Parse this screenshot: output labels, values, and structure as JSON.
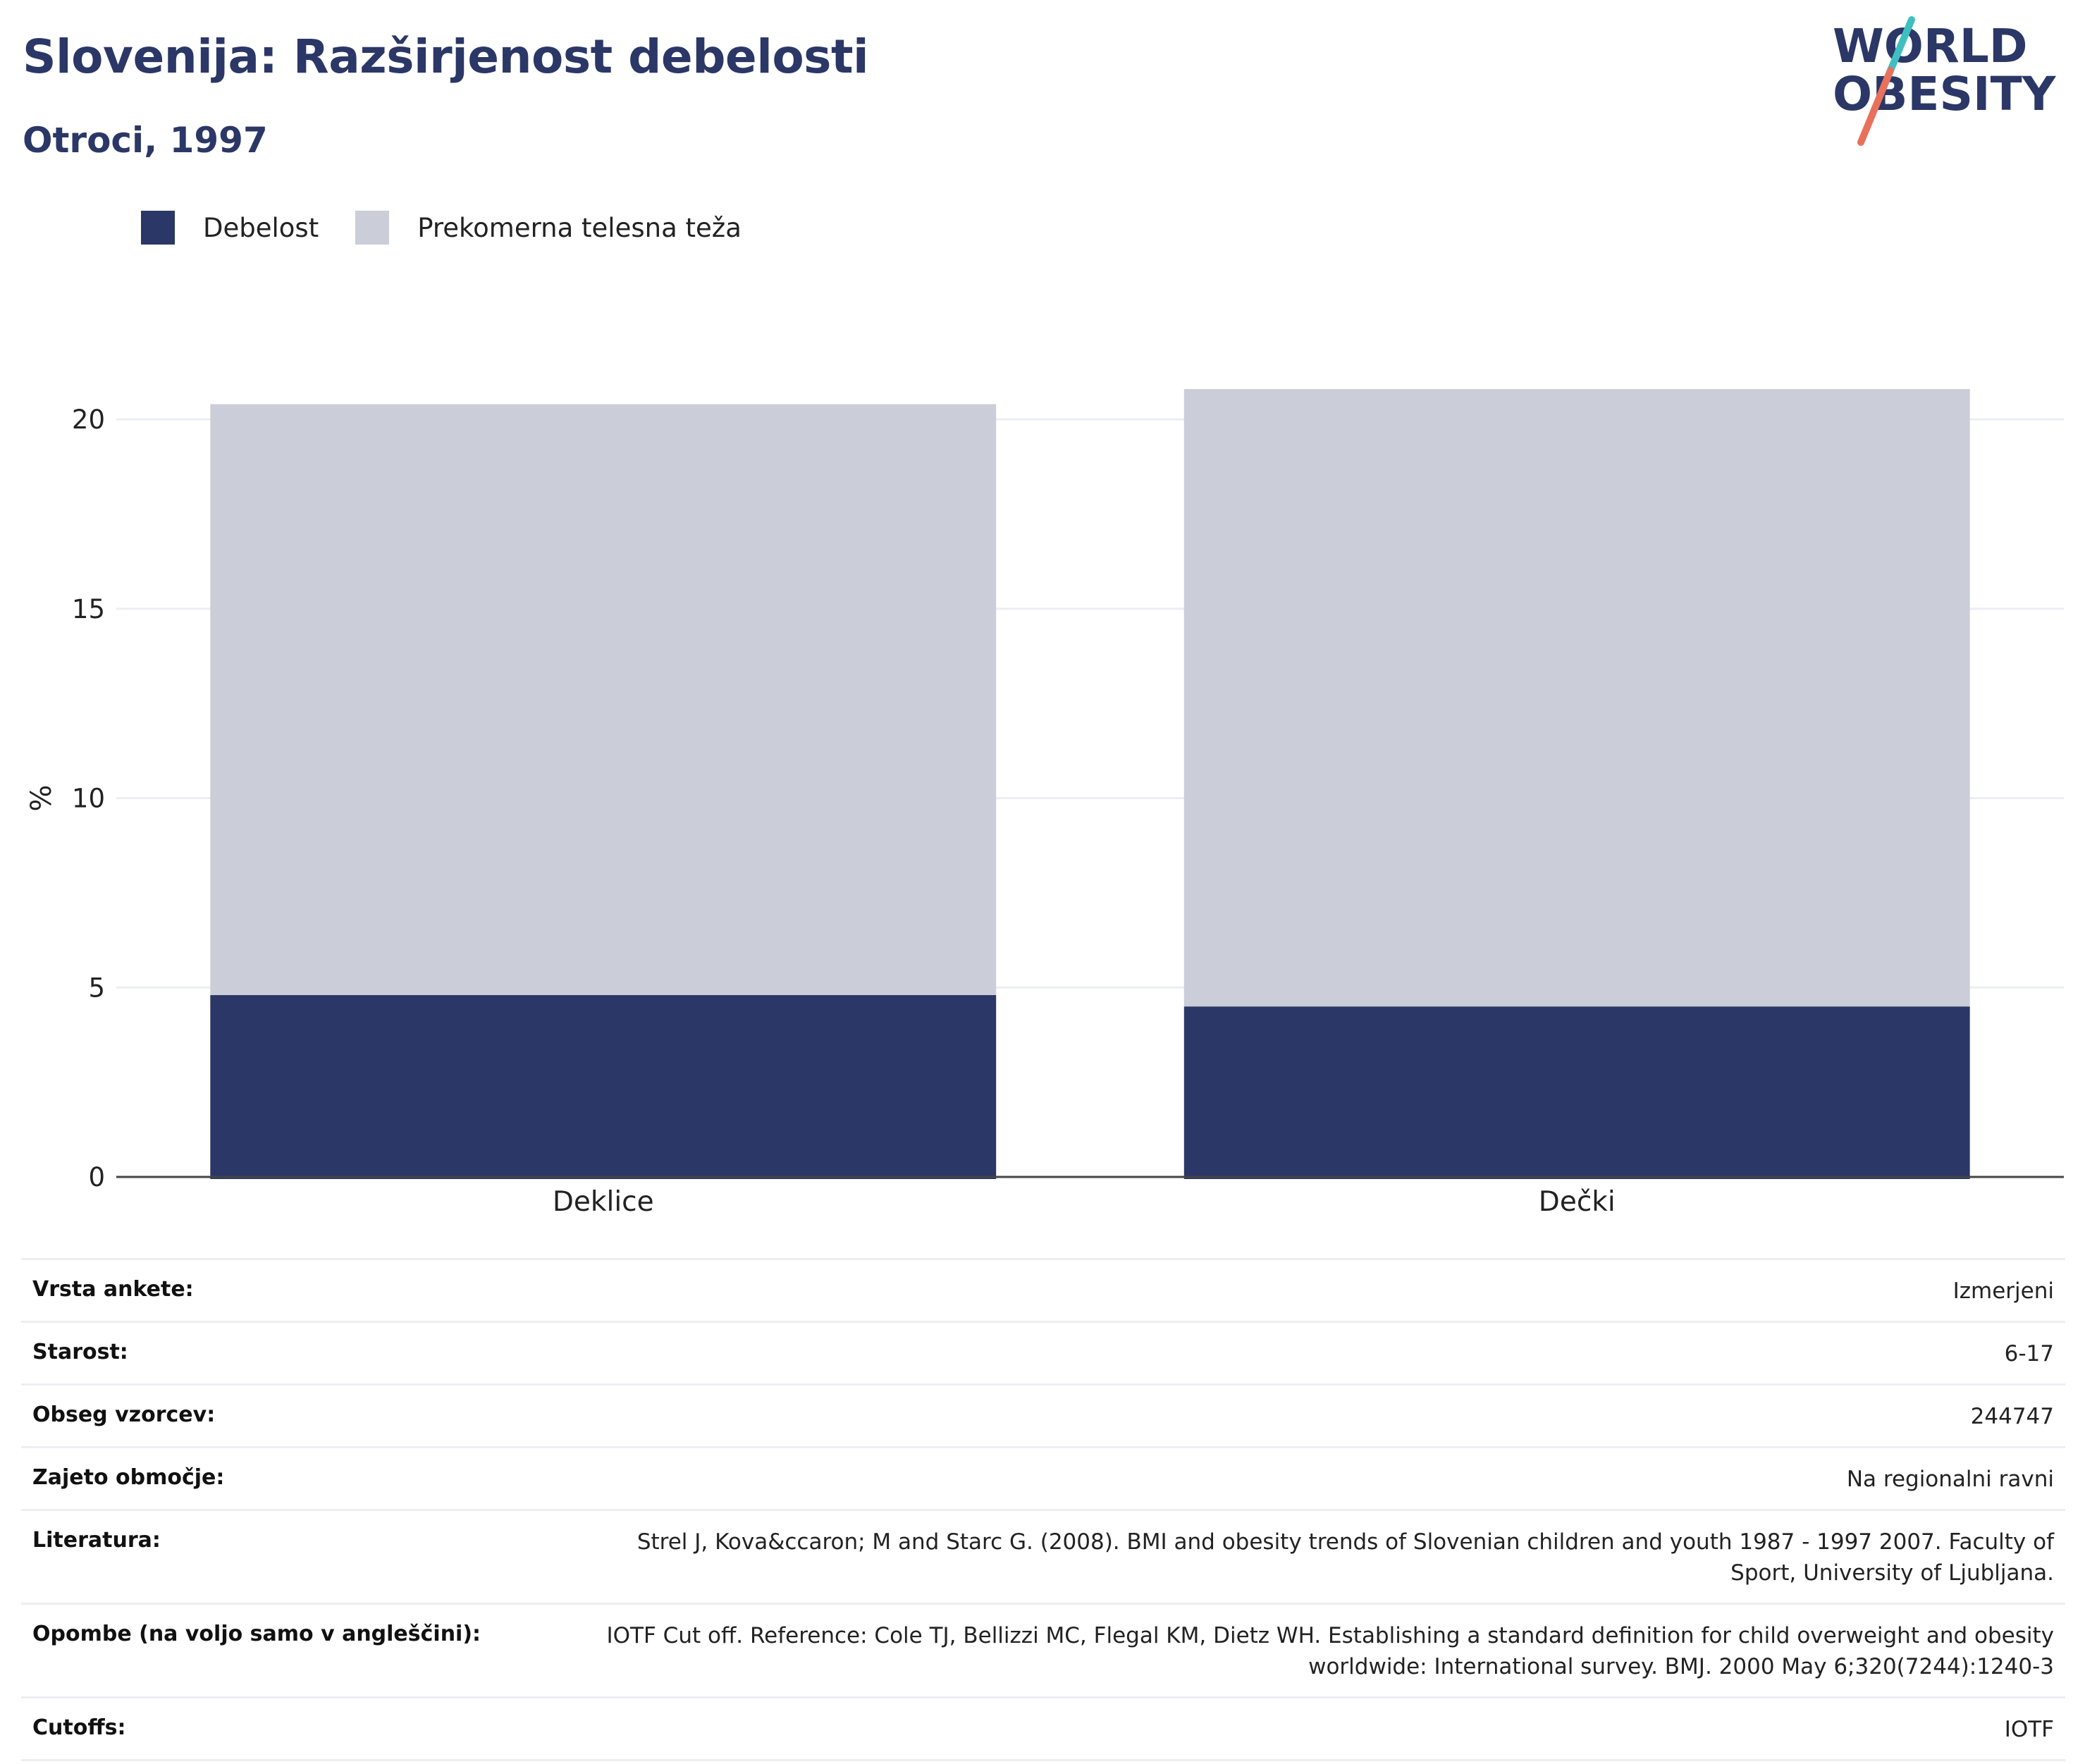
{
  "header": {
    "title": "Slovenija: Razširjenost debelosti",
    "subtitle": "Otroci, 1997"
  },
  "logo": {
    "line1": "WORLD",
    "line2": "OBESITY",
    "colors": {
      "text": "#2b3766",
      "slash_top": "#3fbfbf",
      "slash_bottom": "#e8715c"
    }
  },
  "legend": [
    {
      "label": "Debelost",
      "color": "#2b3766"
    },
    {
      "label": "Prekomerna telesna teža",
      "color": "#cbcdd8"
    }
  ],
  "chart_data": {
    "type": "bar",
    "stacked": true,
    "categories": [
      "Deklice",
      "Dečki"
    ],
    "series": [
      {
        "name": "Debelost",
        "color": "#2b3766",
        "values": [
          4.8,
          4.5
        ]
      },
      {
        "name": "Prekomerna telesna teža",
        "color": "#cbcdd8",
        "values": [
          15.6,
          16.3
        ]
      }
    ],
    "ylabel": "%",
    "ylim": [
      0,
      20.8
    ],
    "yticks": [
      0,
      5,
      10,
      15,
      20
    ],
    "grid": true,
    "legend_position": "top-left"
  },
  "info_table": [
    {
      "label": "Vrsta ankete:",
      "value": "Izmerjeni"
    },
    {
      "label": "Starost:",
      "value": "6-17"
    },
    {
      "label": "Obseg vzorcev:",
      "value": "244747"
    },
    {
      "label": "Zajeto območje:",
      "value": "Na regionalni ravni"
    },
    {
      "label": "Literatura:",
      "value": "Strel J, Kova&ccaron; M and Starc G. (2008). BMI and obesity trends of Slovenian children and youth 1987 - 1997 2007. Faculty of Sport, University of Ljubljana."
    },
    {
      "label": "Opombe (na voljo samo v angleščini):",
      "value": "IOTF Cut off. Reference: Cole TJ, Bellizzi MC, Flegal KM, Dietz WH. Establishing a standard definition for child overweight and obesity worldwide: International survey. BMJ. 2000 May 6;320(7244):1240-3"
    },
    {
      "label": "Cutoffs:",
      "value": "IOTF"
    }
  ]
}
